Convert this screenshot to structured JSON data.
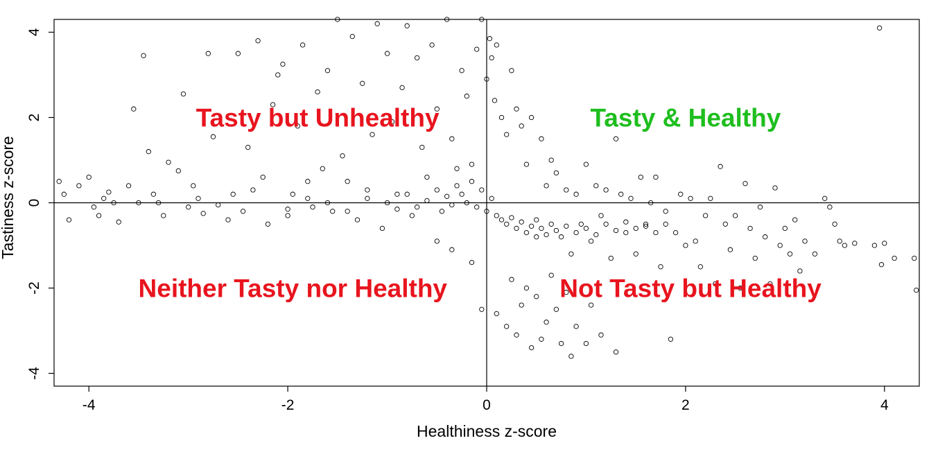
{
  "chart_data": {
    "type": "scatter",
    "title": "",
    "xlabel": "Healthiness z-score",
    "ylabel": "Tastiness z-score",
    "xlim": [
      -4.35,
      4.35
    ],
    "ylim": [
      -4.3,
      4.3
    ],
    "x_ticks": [
      -4,
      -2,
      0,
      2,
      4
    ],
    "y_ticks": [
      -4,
      -2,
      0,
      2,
      4
    ],
    "x_tick_labels": [
      "-4",
      "-2",
      "0",
      "2",
      "4"
    ],
    "y_tick_labels": [
      "-4",
      "-2",
      "0",
      "2",
      "4"
    ],
    "grid": false,
    "reference_lines": {
      "x": 0,
      "y": 0
    },
    "marker": "open-circle",
    "point_color": "#000000",
    "annotations": [
      {
        "text": "Tasty but Unhealthy",
        "x": -1.7,
        "y": 2.0,
        "color": "#e8141e"
      },
      {
        "text": "Tasty & Healthy",
        "x": 2.0,
        "y": 2.0,
        "color": "#1ebe1e"
      },
      {
        "text": "Neither Tasty nor Healthy",
        "x": -1.95,
        "y": -2.0,
        "color": "#e8141e"
      },
      {
        "text": "Not Tasty but Healthy",
        "x": 2.05,
        "y": -2.0,
        "color": "#e8141e"
      }
    ],
    "series": [
      {
        "points": [
          [
            -4.3,
            0.5
          ],
          [
            -4.25,
            0.2
          ],
          [
            -4.2,
            -0.4
          ],
          [
            -4.1,
            0.4
          ],
          [
            -4.0,
            0.6
          ],
          [
            -3.95,
            -0.1
          ],
          [
            -3.9,
            -0.3
          ],
          [
            -3.85,
            0.1
          ],
          [
            -3.8,
            0.25
          ],
          [
            -3.75,
            0.0
          ],
          [
            -3.7,
            -0.45
          ],
          [
            -3.6,
            0.4
          ],
          [
            -3.55,
            2.2
          ],
          [
            -3.5,
            0.0
          ],
          [
            -3.45,
            3.45
          ],
          [
            -3.4,
            1.2
          ],
          [
            -3.35,
            0.2
          ],
          [
            -3.3,
            0.0
          ],
          [
            -3.25,
            -0.3
          ],
          [
            -3.2,
            0.95
          ],
          [
            -3.1,
            0.75
          ],
          [
            -3.05,
            2.55
          ],
          [
            -3.0,
            -0.1
          ],
          [
            -2.95,
            0.4
          ],
          [
            -2.9,
            0.1
          ],
          [
            -2.85,
            -0.25
          ],
          [
            -2.8,
            3.5
          ],
          [
            -2.75,
            1.55
          ],
          [
            -2.7,
            -0.05
          ],
          [
            -2.6,
            -0.4
          ],
          [
            -2.55,
            0.2
          ],
          [
            -2.5,
            3.5
          ],
          [
            -2.45,
            -0.2
          ],
          [
            -2.4,
            1.3
          ],
          [
            -2.35,
            0.3
          ],
          [
            -2.3,
            3.8
          ],
          [
            -2.25,
            0.6
          ],
          [
            -2.2,
            -0.5
          ],
          [
            -2.15,
            2.3
          ],
          [
            -2.1,
            3.0
          ],
          [
            -2.05,
            3.25
          ],
          [
            -2.0,
            -0.3
          ],
          [
            -1.95,
            0.2
          ],
          [
            -1.9,
            1.8
          ],
          [
            -1.85,
            3.7
          ],
          [
            -1.8,
            0.5
          ],
          [
            -1.75,
            -0.1
          ],
          [
            -1.7,
            2.6
          ],
          [
            -1.65,
            0.8
          ],
          [
            -1.6,
            3.1
          ],
          [
            -1.55,
            -0.2
          ],
          [
            -1.5,
            4.3
          ],
          [
            -1.45,
            1.1
          ],
          [
            -1.4,
            0.5
          ],
          [
            -1.35,
            3.9
          ],
          [
            -1.3,
            -0.4
          ],
          [
            -1.25,
            2.8
          ],
          [
            -1.2,
            0.3
          ],
          [
            -1.15,
            1.6
          ],
          [
            -1.1,
            4.2
          ],
          [
            -1.05,
            -0.6
          ],
          [
            -1.0,
            3.5
          ],
          [
            -0.95,
            1.9
          ],
          [
            -0.9,
            0.2
          ],
          [
            -0.85,
            2.7
          ],
          [
            -0.8,
            4.15
          ],
          [
            -0.75,
            -0.3
          ],
          [
            -0.7,
            3.4
          ],
          [
            -0.65,
            1.3
          ],
          [
            -0.6,
            0.6
          ],
          [
            -0.55,
            3.7
          ],
          [
            -0.5,
            2.2
          ],
          [
            -0.45,
            -0.2
          ],
          [
            -0.4,
            4.3
          ],
          [
            -0.35,
            1.5
          ],
          [
            -0.3,
            0.8
          ],
          [
            -0.25,
            3.1
          ],
          [
            -0.2,
            2.5
          ],
          [
            -0.15,
            0.9
          ],
          [
            -0.1,
            3.6
          ],
          [
            -0.05,
            4.3
          ],
          [
            0.0,
            2.9
          ],
          [
            0.03,
            3.85
          ],
          [
            0.05,
            3.4
          ],
          [
            0.08,
            2.4
          ],
          [
            0.1,
            3.7
          ],
          [
            0.15,
            2.0
          ],
          [
            0.2,
            1.6
          ],
          [
            0.25,
            3.1
          ],
          [
            0.3,
            2.2
          ],
          [
            0.35,
            1.8
          ],
          [
            0.4,
            0.9
          ],
          [
            0.45,
            2.0
          ],
          [
            0.5,
            -0.4
          ],
          [
            0.55,
            1.5
          ],
          [
            0.6,
            0.4
          ],
          [
            0.65,
            1.0
          ],
          [
            0.7,
            0.7
          ],
          [
            0.75,
            -0.8
          ],
          [
            0.8,
            0.3
          ],
          [
            0.85,
            -1.2
          ],
          [
            0.9,
            0.2
          ],
          [
            0.95,
            -0.5
          ],
          [
            1.0,
            0.9
          ],
          [
            1.05,
            -0.9
          ],
          [
            1.1,
            0.4
          ],
          [
            1.15,
            -0.3
          ],
          [
            1.2,
            0.3
          ],
          [
            1.25,
            -1.3
          ],
          [
            1.3,
            1.5
          ],
          [
            1.35,
            0.2
          ],
          [
            1.4,
            -0.7
          ],
          [
            1.45,
            0.1
          ],
          [
            1.5,
            -1.2
          ],
          [
            1.55,
            0.6
          ],
          [
            1.6,
            -0.5
          ],
          [
            1.65,
            0.0
          ],
          [
            1.7,
            0.6
          ],
          [
            1.75,
            -1.5
          ],
          [
            1.8,
            -0.2
          ],
          [
            1.85,
            -3.2
          ],
          [
            1.9,
            -0.7
          ],
          [
            1.95,
            0.2
          ],
          [
            2.0,
            -1.0
          ],
          [
            2.05,
            0.1
          ],
          [
            2.1,
            -0.9
          ],
          [
            2.15,
            -1.5
          ],
          [
            2.2,
            -0.3
          ],
          [
            2.25,
            0.1
          ],
          [
            2.3,
            -1.9
          ],
          [
            2.35,
            0.85
          ],
          [
            2.4,
            -0.5
          ],
          [
            2.45,
            -1.1
          ],
          [
            2.5,
            -0.3
          ],
          [
            2.55,
            -2.0
          ],
          [
            2.6,
            0.45
          ],
          [
            2.65,
            -0.6
          ],
          [
            2.7,
            -1.3
          ],
          [
            2.75,
            -0.1
          ],
          [
            2.8,
            -0.8
          ],
          [
            2.85,
            -1.9
          ],
          [
            2.9,
            0.35
          ],
          [
            2.95,
            -1.0
          ],
          [
            3.0,
            -0.6
          ],
          [
            3.05,
            -1.2
          ],
          [
            3.1,
            -0.4
          ],
          [
            3.15,
            -1.6
          ],
          [
            3.2,
            -0.9
          ],
          [
            3.3,
            -1.2
          ],
          [
            3.4,
            0.1
          ],
          [
            3.45,
            -0.1
          ],
          [
            3.5,
            -0.5
          ],
          [
            3.55,
            -0.9
          ],
          [
            3.6,
            -1.0
          ],
          [
            3.7,
            -0.95
          ],
          [
            3.9,
            -1.0
          ],
          [
            3.95,
            4.1
          ],
          [
            3.97,
            -1.45
          ],
          [
            4.0,
            -0.95
          ],
          [
            4.1,
            -1.3
          ],
          [
            4.3,
            -1.3
          ],
          [
            4.32,
            -2.05
          ],
          [
            0.1,
            -2.6
          ],
          [
            0.2,
            -2.9
          ],
          [
            0.3,
            -3.1
          ],
          [
            0.35,
            -2.4
          ],
          [
            0.45,
            -3.4
          ],
          [
            0.5,
            -2.2
          ],
          [
            0.55,
            -3.2
          ],
          [
            0.6,
            -2.8
          ],
          [
            0.7,
            -2.5
          ],
          [
            0.75,
            -3.3
          ],
          [
            0.8,
            -2.1
          ],
          [
            0.85,
            -3.6
          ],
          [
            0.9,
            -2.9
          ],
          [
            1.0,
            -3.3
          ],
          [
            1.05,
            -2.4
          ],
          [
            1.15,
            -3.1
          ],
          [
            1.3,
            -3.5
          ],
          [
            0.25,
            -1.8
          ],
          [
            0.4,
            -2.0
          ],
          [
            0.65,
            -1.7
          ],
          [
            -0.05,
            -2.5
          ],
          [
            -0.15,
            -1.4
          ],
          [
            -0.35,
            -1.1
          ],
          [
            -0.5,
            -0.9
          ],
          [
            -2.0,
            -0.15
          ],
          [
            -1.8,
            0.1
          ],
          [
            -1.6,
            0.0
          ],
          [
            -1.4,
            -0.2
          ],
          [
            -1.2,
            0.1
          ],
          [
            -1.0,
            0.0
          ],
          [
            -0.9,
            -0.15
          ],
          [
            -0.8,
            0.2
          ],
          [
            -0.7,
            -0.1
          ],
          [
            -0.6,
            0.05
          ],
          [
            -0.5,
            0.3
          ],
          [
            -0.4,
            0.15
          ],
          [
            -0.35,
            -0.05
          ],
          [
            -0.3,
            0.4
          ],
          [
            -0.25,
            0.2
          ],
          [
            -0.2,
            0.0
          ],
          [
            -0.15,
            0.5
          ],
          [
            -0.1,
            -0.1
          ],
          [
            -0.05,
            0.3
          ],
          [
            0.0,
            -0.2
          ],
          [
            0.05,
            0.1
          ],
          [
            0.1,
            -0.3
          ],
          [
            0.15,
            -0.4
          ],
          [
            0.2,
            -0.5
          ],
          [
            0.25,
            -0.35
          ],
          [
            0.3,
            -0.6
          ],
          [
            0.35,
            -0.45
          ],
          [
            0.4,
            -0.7
          ],
          [
            0.45,
            -0.55
          ],
          [
            0.5,
            -0.8
          ],
          [
            0.55,
            -0.6
          ],
          [
            0.6,
            -0.75
          ],
          [
            0.65,
            -0.5
          ],
          [
            0.7,
            -0.65
          ],
          [
            0.8,
            -0.55
          ],
          [
            0.9,
            -0.7
          ],
          [
            1.0,
            -0.6
          ],
          [
            1.1,
            -0.75
          ],
          [
            1.2,
            -0.5
          ],
          [
            1.3,
            -0.65
          ],
          [
            1.4,
            -0.45
          ],
          [
            1.5,
            -0.6
          ],
          [
            1.6,
            -0.55
          ],
          [
            1.7,
            -0.7
          ],
          [
            1.8,
            -0.5
          ]
        ]
      }
    ]
  }
}
